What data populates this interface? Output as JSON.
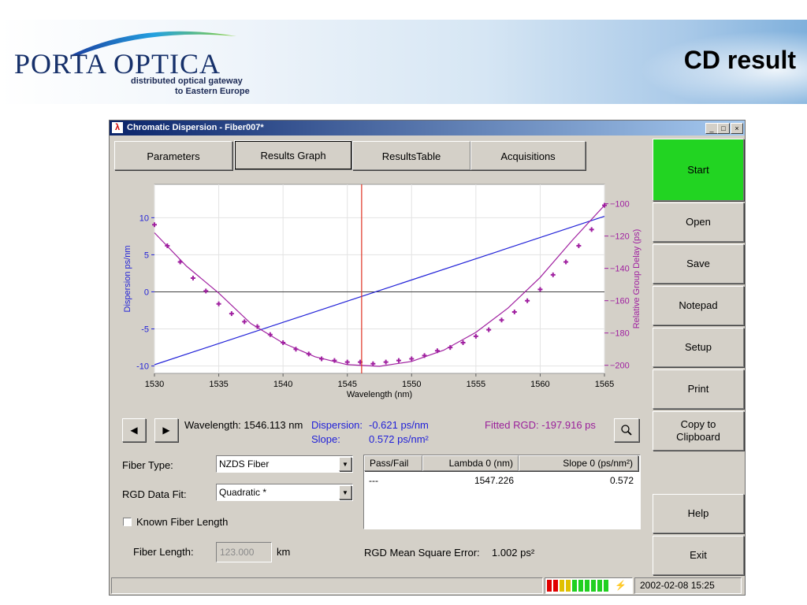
{
  "slide": {
    "logo": "PORTA OPTICA",
    "logo_sub1": "distributed optical gateway",
    "logo_sub2": "to Eastern Europe",
    "title": "CD result"
  },
  "window": {
    "title": "Chromatic Dispersion - Fiber007*",
    "buttons": [
      "_",
      "□",
      "×"
    ]
  },
  "tabs": [
    {
      "label": "Parameters",
      "active": false
    },
    {
      "label": "Results Graph",
      "active": true
    },
    {
      "label": "ResultsTable",
      "active": false
    },
    {
      "label": "Acquisitions",
      "active": false
    }
  ],
  "side_buttons": {
    "start": "Start",
    "open": "Open",
    "save": "Save",
    "notepad": "Notepad",
    "setup": "Setup",
    "print": "Print",
    "copy_line1": "Copy to",
    "copy_line2": "Clipboard",
    "help": "Help",
    "exit": "Exit",
    "start_color": "#22d422"
  },
  "readout": {
    "wavelength": "Wavelength: 1546.113 nm",
    "dispersion_label": "Dispersion:",
    "dispersion_value": "-0.621 ps/nm",
    "slope_label": "Slope:",
    "slope_value": "0.572 ps/nm²",
    "fitted_rgd": "Fitted RGD: -197.916 ps"
  },
  "form": {
    "fiber_type_label": "Fiber Type:",
    "fiber_type_value": "NZDS Fiber",
    "rgd_fit_label": "RGD Data Fit:",
    "rgd_fit_value": "Quadratic *",
    "known_length_label": "Known Fiber Length",
    "known_length_checked": false,
    "fiber_length_label": "Fiber Length:",
    "fiber_length_value": "123.000",
    "fiber_length_unit": "km"
  },
  "results_table": {
    "headers": [
      "Pass/Fail",
      "Lambda 0 (nm)",
      "Slope 0 (ps/nm²)"
    ],
    "rows": [
      [
        "---",
        "1547.226",
        "0.572"
      ]
    ]
  },
  "mse": {
    "label": "RGD Mean Square Error:",
    "value": "1.002 ps²"
  },
  "status": {
    "datetime": "2002-02-08 15:25",
    "battery_segments": [
      "#e00000",
      "#e00000",
      "#e0c000",
      "#e0c000",
      "#20d020",
      "#20d020",
      "#20d020",
      "#20d020",
      "#20d020",
      "#20d020"
    ]
  },
  "chart_data": {
    "type": "line",
    "xlabel": "Wavelength (nm)",
    "ylabel_left": "Dispersion ps/nm",
    "ylabel_right": "Relative Group Delay (ps)",
    "xlim": [
      1530,
      1565
    ],
    "ylim_left": [
      -11,
      14.5
    ],
    "ylim_right": [
      -205,
      -88
    ],
    "x_ticks": [
      1530,
      1535,
      1540,
      1545,
      1550,
      1555,
      1560,
      1565
    ],
    "y_left_ticks": [
      10,
      5,
      0,
      -5,
      -10
    ],
    "y_right_ticks": [
      -100,
      -120,
      -140,
      -160,
      -180,
      -200
    ],
    "cursor_x": 1546.113,
    "grid": true,
    "series": [
      {
        "axis": "left",
        "style": "line",
        "color": "#2323d8",
        "x": [
          1530,
          1565
        ],
        "y": [
          -9.83,
          10.19
        ]
      },
      {
        "axis": "right",
        "style": "line",
        "color": "#a020a0",
        "x": [
          1530,
          1532.5,
          1535,
          1537.5,
          1540,
          1542.5,
          1545,
          1547.5,
          1550,
          1552.5,
          1555,
          1557.5,
          1560,
          1562.5,
          1565
        ],
        "y": [
          -118,
          -138.7,
          -155.3,
          -174.2,
          -186.2,
          -194.7,
          -199.6,
          -200.6,
          -197.6,
          -190.6,
          -179.6,
          -164.6,
          -145.6,
          -122.6,
          -101
        ]
      },
      {
        "axis": "right",
        "style": "markers",
        "color": "#a020a0",
        "x": [
          1530,
          1531,
          1532,
          1533,
          1534,
          1535,
          1536,
          1537,
          1538,
          1539,
          1540,
          1541,
          1542,
          1543,
          1544,
          1545,
          1546,
          1547,
          1548,
          1549,
          1550,
          1551,
          1552,
          1553,
          1554,
          1555,
          1556,
          1557,
          1558,
          1559,
          1560,
          1561,
          1562,
          1563,
          1564,
          1565
        ],
        "y": [
          -113,
          -126,
          -136,
          -146,
          -154,
          -162,
          -168,
          -173,
          -176,
          -181,
          -186,
          -190,
          -193,
          -196,
          -197,
          -198,
          -198,
          -199,
          -198,
          -197,
          -196,
          -194,
          -191,
          -189,
          -186,
          -182,
          -178,
          -172,
          -167,
          -160,
          -153,
          -144,
          -136,
          -126,
          -116,
          -101
        ]
      }
    ]
  }
}
